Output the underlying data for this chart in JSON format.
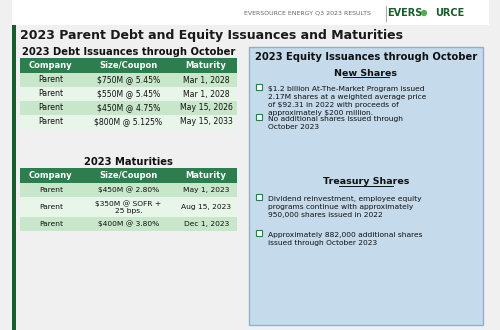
{
  "title": "2023 Parent Debt and Equity Issuances and Maturities",
  "header_text": "EVERSOURCE ENERGY Q3 2023 RESULTS",
  "bg_color": "#f0f0f0",
  "header_bg": "#ffffff",
  "green_header": "#2e7d4f",
  "light_green_row": "#c8e6c9",
  "light_green_alt": "#e8f5e9",
  "debt_issuances_title": "2023 Debt Issuances through October",
  "debt_issuances_cols": [
    "Company",
    "Size/Coupon",
    "Maturity"
  ],
  "debt_issuances_rows": [
    [
      "Parent",
      "$750M @ 5.45%",
      "Mar 1, 2028"
    ],
    [
      "Parent",
      "$550M @ 5.45%",
      "Mar 1, 2028"
    ],
    [
      "Parent",
      "$450M @ 4.75%",
      "May 15, 2026"
    ],
    [
      "Parent",
      "$800M @ 5.125%",
      "May 15, 2033"
    ]
  ],
  "maturities_title": "2023 Maturities",
  "maturities_cols": [
    "Company",
    "Size/Coupon",
    "Maturity"
  ],
  "maturities_rows": [
    [
      "Parent",
      "$450M @ 2.80%",
      "May 1, 2023"
    ],
    [
      "Parent",
      "$350M @ SOFR +\n25 bps.",
      "Aug 15, 2023"
    ],
    [
      "Parent",
      "$400M @ 3.80%",
      "Dec 1, 2023"
    ]
  ],
  "equity_title": "2023 Equity Issuances through October",
  "new_shares_title": "New Shares",
  "new_shares_bullets": [
    "$1.2 billion At-The-Market Program issued\n2.17M shares at a weighted average price\nof $92.31 in 2022 with proceeds of\napproximately $200 million.",
    "No additional shares issued through\nOctober 2023"
  ],
  "treasury_title": "Treasury Shares",
  "treasury_bullets": [
    "Dividend reinvestment, employee equity\nprograms continue with approximately\n950,000 shares issued in 2022",
    "Approximately 882,000 additional shares\nissued through October 2023"
  ],
  "green_accent": "#4caf50",
  "dark_green_text": "#1a5c2a",
  "blue_panel": "#c5daea",
  "blue_border": "#8ab4cc"
}
